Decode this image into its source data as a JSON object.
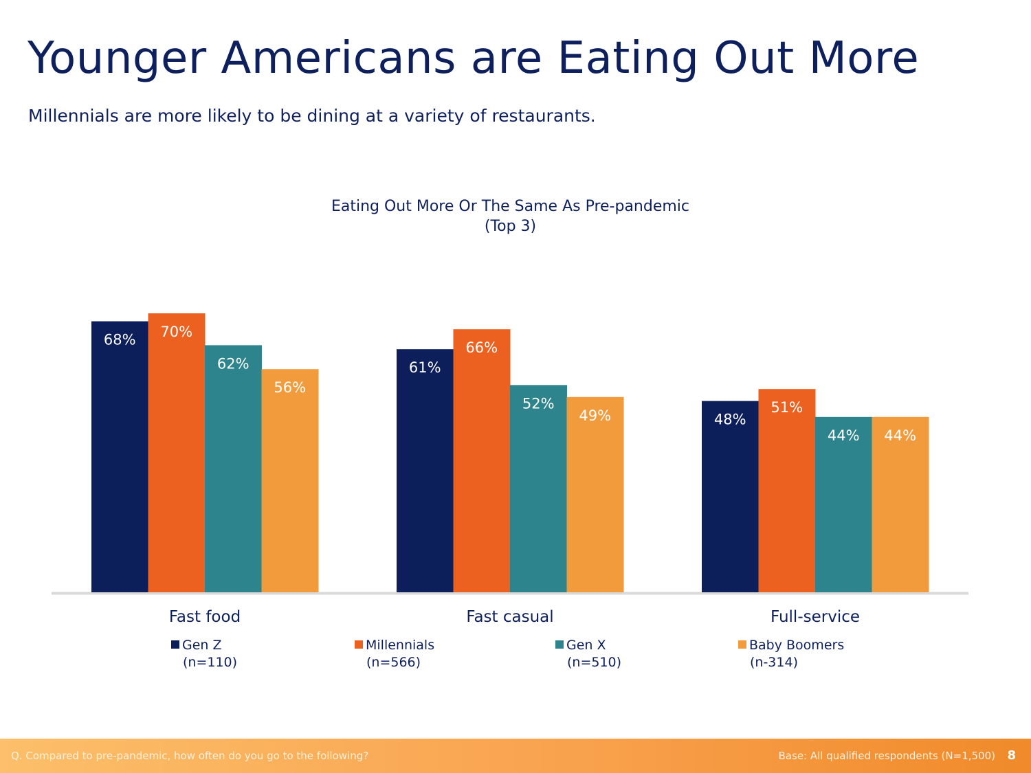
{
  "slide": {
    "title": "Younger Americans are Eating Out More",
    "subtitle": "Millennials are more likely to be dining at a variety of restaurants.",
    "footer_question": "Q. Compared to pre-pandemic, how often do you go to the following?",
    "footer_base": "Base: All qualified respondents (N=1,500)",
    "page_number": "8"
  },
  "chart_data": {
    "type": "bar",
    "title": "Eating Out More Or The Same As Pre-pandemic",
    "subtitle": "(Top 3)",
    "categories": [
      "Fast food",
      "Fast casual",
      "Full-service"
    ],
    "series": [
      {
        "name": "Gen Z",
        "sample": "(n=110)",
        "color": "#0c1f5b",
        "values": [
          68,
          61,
          48
        ],
        "labels": [
          "68%",
          "61%",
          "48%"
        ]
      },
      {
        "name": "Millennials",
        "sample": "(n=566)",
        "color": "#ec611f",
        "values": [
          70,
          66,
          51
        ],
        "labels": [
          "70%",
          "66%",
          "51%"
        ]
      },
      {
        "name": "Gen X",
        "sample": "(n=510)",
        "color": "#2d848c",
        "values": [
          62,
          52,
          44
        ],
        "labels": [
          "62%",
          "52%",
          "44%"
        ]
      },
      {
        "name": "Baby Boomers",
        "sample": "(n-314)",
        "color": "#f19b3d",
        "values": [
          56,
          49,
          44
        ],
        "labels": [
          "56%",
          "49%",
          "44%"
        ]
      }
    ],
    "ylim": [
      0,
      100
    ],
    "grid": false,
    "legend_position": "bottom",
    "baseline_color": "#d9d9d9"
  }
}
